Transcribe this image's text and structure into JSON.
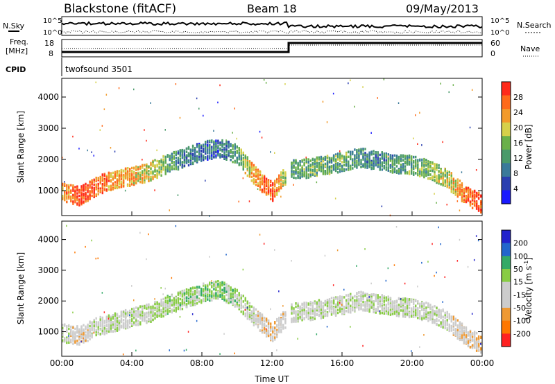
{
  "header": {
    "title": "Blackstone (fitACF)",
    "beam": "Beam 18",
    "date": "09/May/2013"
  },
  "noise_panel": {
    "left_label": "N.Sky",
    "right_label": "N.Search",
    "tick_top": "10^5",
    "tick_bottom": "10^0"
  },
  "freq_panel": {
    "label_line1": "Freq.",
    "label_line2": "[MHz]",
    "left_ticks": [
      "18",
      "8"
    ],
    "right_label": "Nave",
    "right_ticks": [
      "60",
      "0"
    ]
  },
  "cpid_panel": {
    "label": "CPID",
    "value": "twofsound 3501"
  },
  "colors": {
    "power_scale": [
      "#1a1aff",
      "#2a3fb0",
      "#3a7a9a",
      "#4a9a6a",
      "#6ab04a",
      "#d6d04a",
      "#f29a2a",
      "#ff6a1a",
      "#ff2a1a"
    ],
    "velocity_scale": [
      "#2222cc",
      "#2266cc",
      "#33aa66",
      "#88cc44",
      "#cccccc",
      "#cccccc",
      "#ee9933",
      "#ff7700",
      "#ff2222"
    ]
  },
  "chart_data": [
    {
      "type": "heatmap",
      "title": "",
      "xlabel": "",
      "ylabel": "Slant Range [km]",
      "colorbar_label": "Power [dB]",
      "colorbar_ticks": [
        "28",
        "24",
        "20",
        "16",
        "12",
        "8",
        "4"
      ],
      "x_ticks": [
        "00:00",
        "04:00",
        "08:00",
        "12:00",
        "16:00",
        "20:00",
        "00:00"
      ],
      "y_ticks": [
        "1000",
        "2000",
        "3000",
        "4000"
      ],
      "xlim": [
        0,
        24
      ],
      "ylim": [
        200,
        4600
      ],
      "clim": [
        0,
        32
      ],
      "echo_band": {
        "x": [
          0,
          1,
          2,
          3,
          4,
          5,
          6,
          7,
          8,
          9,
          10,
          11,
          12,
          13,
          14,
          15,
          16,
          17,
          18,
          19,
          20,
          21,
          22,
          23,
          24
        ],
        "range": [
          1000,
          850,
          1200,
          1400,
          1500,
          1650,
          1900,
          2100,
          2300,
          2400,
          2200,
          1500,
          1000,
          1700,
          1750,
          1850,
          1950,
          2100,
          2000,
          1900,
          1850,
          1700,
          1400,
          900,
          600
        ],
        "power": [
          22,
          30,
          26,
          24,
          22,
          20,
          14,
          10,
          8,
          8,
          12,
          24,
          28,
          12,
          14,
          14,
          14,
          12,
          10,
          12,
          14,
          16,
          18,
          26,
          30
        ]
      }
    },
    {
      "type": "heatmap",
      "title": "",
      "xlabel": "Time UT",
      "ylabel": "Slant Range [km]",
      "colorbar_label": "Velocity [m s^-1]",
      "colorbar_ticks": [
        "200",
        "100",
        "50",
        "15",
        "-15",
        "-50",
        "-100",
        "-200"
      ],
      "x_ticks": [
        "00:00",
        "04:00",
        "08:00",
        "12:00",
        "16:00",
        "20:00",
        "00:00"
      ],
      "y_ticks": [
        "1000",
        "2000",
        "3000",
        "4000"
      ],
      "xlim": [
        0,
        24
      ],
      "ylim": [
        200,
        4600
      ],
      "clim": [
        -250,
        250
      ],
      "echo_band": {
        "x": [
          0,
          1,
          2,
          3,
          4,
          5,
          6,
          7,
          8,
          9,
          10,
          11,
          12,
          13,
          14,
          15,
          16,
          17,
          18,
          19,
          20,
          21,
          22,
          23,
          24
        ],
        "range": [
          1000,
          900,
          1200,
          1350,
          1500,
          1650,
          1900,
          2100,
          2300,
          2400,
          2100,
          1500,
          1000,
          1650,
          1700,
          1800,
          1900,
          2050,
          1950,
          1850,
          1800,
          1650,
          1400,
          900,
          600
        ],
        "velocity": [
          0,
          -60,
          0,
          10,
          0,
          20,
          30,
          40,
          50,
          50,
          40,
          -20,
          -80,
          0,
          0,
          5,
          0,
          0,
          0,
          0,
          0,
          -10,
          -20,
          -60,
          -80
        ]
      }
    }
  ]
}
